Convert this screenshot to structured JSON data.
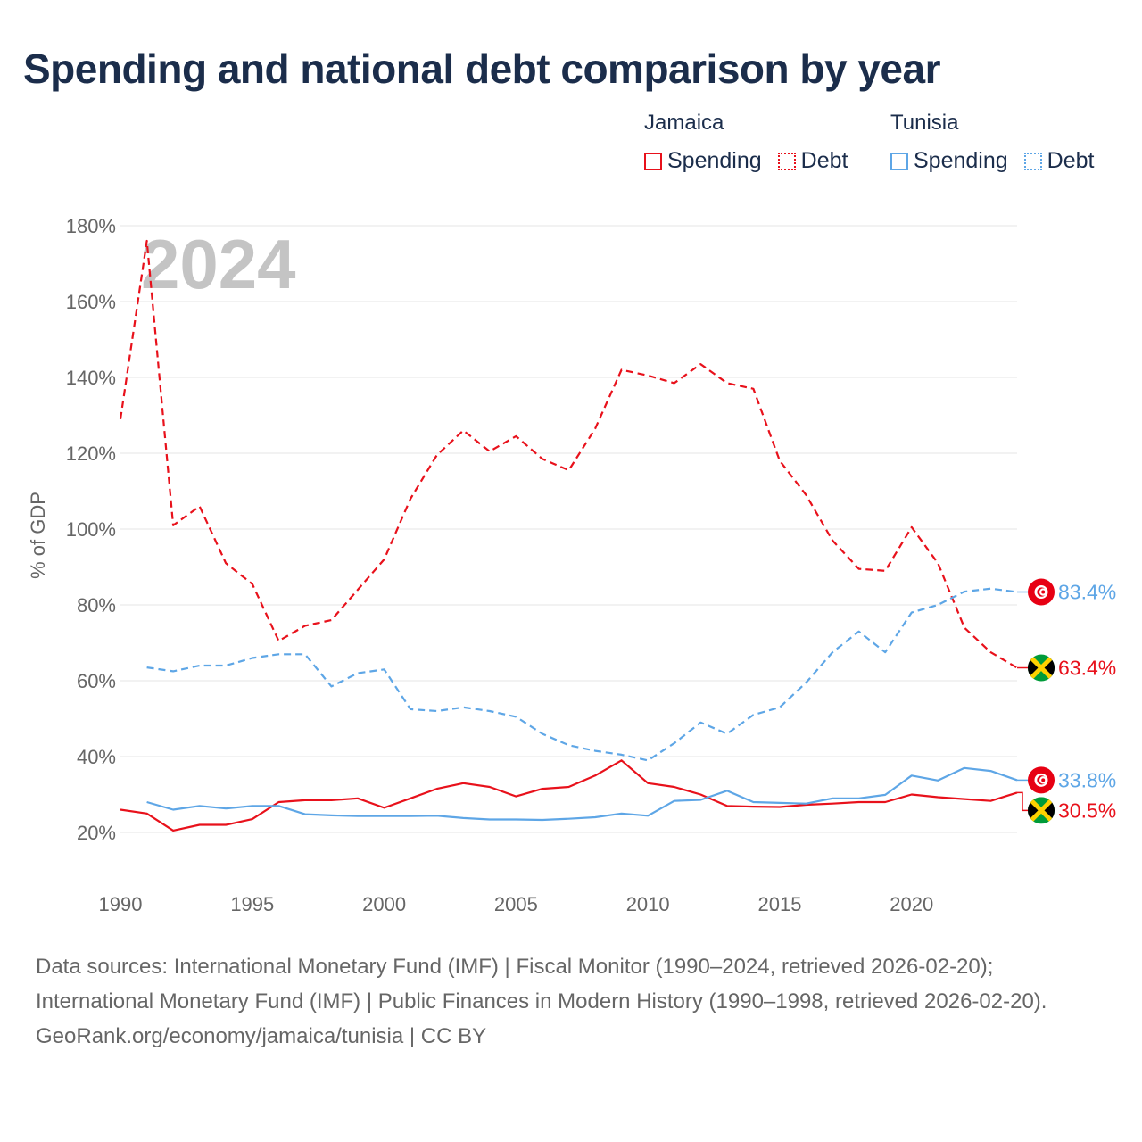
{
  "title": "Spending and national debt comparison by year",
  "legend": [
    {
      "country": "Jamaica",
      "items": [
        {
          "label": "Spending",
          "style": "solid",
          "color": "#e8111b"
        },
        {
          "label": "Debt",
          "style": "dotted",
          "color": "#e8111b"
        }
      ]
    },
    {
      "country": "Tunisia",
      "items": [
        {
          "label": "Spending",
          "style": "solid",
          "color": "#5ea6e6"
        },
        {
          "label": "Debt",
          "style": "dotted",
          "color": "#5ea6e6"
        }
      ]
    }
  ],
  "colors": {
    "jamaica": "#e8111b",
    "tunisia": "#5ea6e6",
    "grid": "#e6e6e6",
    "axis_text": "#666666"
  },
  "chart_data": {
    "type": "line",
    "year_watermark": "2024",
    "ylabel": "% of GDP",
    "xlabel": "",
    "xlim": [
      1990,
      2024
    ],
    "ylim": [
      20,
      180
    ],
    "x_ticks": [
      1990,
      1995,
      2000,
      2005,
      2010,
      2015,
      2020
    ],
    "y_ticks": [
      20,
      40,
      60,
      80,
      100,
      120,
      140,
      160,
      180
    ],
    "y_tick_labels": [
      "20%",
      "40%",
      "60%",
      "80%",
      "100%",
      "120%",
      "140%",
      "160%",
      "180%"
    ],
    "series": [
      {
        "name": "Jamaica Debt",
        "country": "Jamaica",
        "metric": "Debt",
        "dash": "dashed",
        "color": "#e8111b",
        "x": [
          1990,
          1991,
          1992,
          1993,
          1994,
          1995,
          1996,
          1997,
          1998,
          1999,
          2000,
          2001,
          2002,
          2003,
          2004,
          2005,
          2006,
          2007,
          2008,
          2009,
          2010,
          2011,
          2012,
          2013,
          2014,
          2015,
          2016,
          2017,
          2018,
          2019,
          2020,
          2021,
          2022,
          2023,
          2024
        ],
        "values": [
          129,
          176,
          101,
          106,
          91,
          85.5,
          70.5,
          74.5,
          76,
          84,
          92,
          108,
          119.5,
          126,
          120.5,
          124.5,
          118.5,
          115.5,
          126.5,
          142,
          140.5,
          138.5,
          143.5,
          138.5,
          137,
          118,
          109,
          97,
          89.5,
          89,
          100.5,
          91,
          74,
          67.5,
          63.4
        ],
        "end_label": "63.4%"
      },
      {
        "name": "Tunisia Debt",
        "country": "Tunisia",
        "metric": "Debt",
        "dash": "dashed",
        "color": "#5ea6e6",
        "x": [
          1991,
          1992,
          1993,
          1994,
          1995,
          1996,
          1997,
          1998,
          1999,
          2000,
          2001,
          2002,
          2003,
          2004,
          2005,
          2006,
          2007,
          2008,
          2009,
          2010,
          2011,
          2012,
          2013,
          2014,
          2015,
          2016,
          2017,
          2018,
          2019,
          2020,
          2021,
          2022,
          2023,
          2024
        ],
        "values": [
          63.5,
          62.5,
          64,
          64,
          66,
          67,
          67,
          58.5,
          62,
          63,
          52.5,
          52,
          53,
          52,
          50.5,
          46,
          43,
          41.5,
          40.5,
          39,
          43.5,
          49,
          46,
          51,
          53,
          59.5,
          67.5,
          73,
          67.5,
          78,
          80,
          83.5,
          84.3,
          83.4
        ],
        "end_label": "83.4%"
      },
      {
        "name": "Jamaica Spending",
        "country": "Jamaica",
        "metric": "Spending",
        "dash": "solid",
        "color": "#e8111b",
        "x": [
          1990,
          1991,
          1992,
          1993,
          1994,
          1995,
          1996,
          1997,
          1998,
          1999,
          2000,
          2001,
          2002,
          2003,
          2004,
          2005,
          2006,
          2007,
          2008,
          2009,
          2010,
          2011,
          2012,
          2013,
          2014,
          2015,
          2016,
          2017,
          2018,
          2019,
          2020,
          2021,
          2022,
          2023,
          2024
        ],
        "values": [
          26,
          25,
          20.5,
          22,
          22,
          23.5,
          28,
          28.5,
          28.5,
          29,
          26.5,
          29,
          31.5,
          33,
          32,
          29.5,
          31.5,
          32,
          35,
          39,
          33,
          32,
          30,
          27,
          26.8,
          26.7,
          27.3,
          27.6,
          28,
          28,
          30,
          29.3,
          28.8,
          28.3,
          30.5
        ],
        "end_label": "30.5%"
      },
      {
        "name": "Tunisia Spending",
        "country": "Tunisia",
        "metric": "Spending",
        "dash": "solid",
        "color": "#5ea6e6",
        "x": [
          1991,
          1992,
          1993,
          1994,
          1995,
          1996,
          1997,
          1998,
          1999,
          2000,
          2001,
          2002,
          2003,
          2004,
          2005,
          2006,
          2007,
          2008,
          2009,
          2010,
          2011,
          2012,
          2013,
          2014,
          2015,
          2016,
          2017,
          2018,
          2019,
          2020,
          2021,
          2022,
          2023,
          2024
        ],
        "values": [
          28,
          26,
          27,
          26.3,
          27,
          27,
          24.8,
          24.5,
          24.3,
          24.3,
          24.3,
          24.4,
          23.8,
          23.4,
          23.4,
          23.3,
          23.6,
          24,
          25,
          24.4,
          28.3,
          28.6,
          31,
          28,
          27.8,
          27.6,
          29,
          29,
          29.9,
          35,
          33.7,
          37,
          36.2,
          33.8
        ],
        "end_label": "33.8%"
      }
    ]
  },
  "footer": {
    "sources": "Data sources: International Monetary Fund (IMF) | Fiscal Monitor (1990–2024, retrieved 2026-02-20); International Monetary Fund (IMF) | Public Finances in Modern History (1990–1998, retrieved 2026-02-20).",
    "credit": "GeoRank.org/economy/jamaica/tunisia | CC BY"
  }
}
